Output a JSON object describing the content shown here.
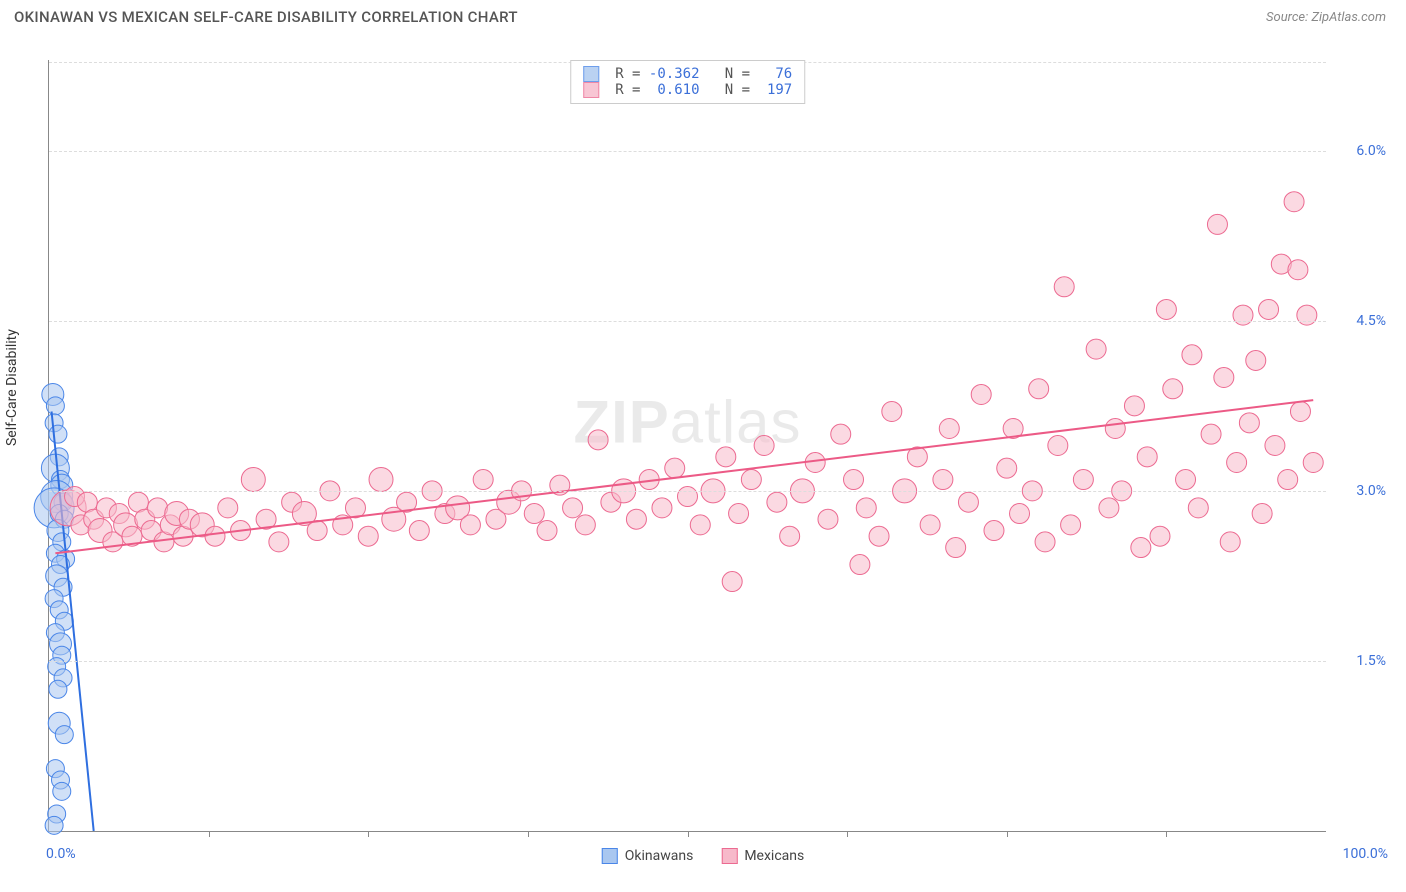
{
  "title": "OKINAWAN VS MEXICAN SELF-CARE DISABILITY CORRELATION CHART",
  "source_label": "Source: ",
  "source_name": "ZipAtlas.com",
  "watermark": "ZIPatlas",
  "ylabel": "Self-Care Disability",
  "xaxis": {
    "min_label": "0.0%",
    "max_label": "100.0%",
    "min": 0,
    "max": 100,
    "tick_positions": [
      12.5,
      25,
      37.5,
      50,
      62.5,
      75,
      87.5
    ]
  },
  "yaxis": {
    "min": 0,
    "max": 6.8,
    "ticks": [
      {
        "v": 1.5,
        "label": "1.5%"
      },
      {
        "v": 3.0,
        "label": "3.0%"
      },
      {
        "v": 4.5,
        "label": "4.5%"
      },
      {
        "v": 6.0,
        "label": "6.0%"
      }
    ],
    "label_fontsize": 14,
    "label_color": "#3b6fd8"
  },
  "series": [
    {
      "name": "Okinawans",
      "fill": "#a9c7f0",
      "stroke": "#4a86e8",
      "fill_opacity": 0.55,
      "marker_radius": 9,
      "trend": {
        "x1": 0.2,
        "y1": 3.7,
        "x2": 3.5,
        "y2": 0.0,
        "color": "#2f6fe0",
        "width": 2
      },
      "legend_stats": {
        "R": "-0.362",
        "N": "76"
      },
      "points": [
        [
          0.3,
          3.85,
          11
        ],
        [
          0.5,
          3.75,
          9
        ],
        [
          0.4,
          3.6,
          9
        ],
        [
          0.7,
          3.5,
          9
        ],
        [
          0.8,
          3.3,
          9
        ],
        [
          0.5,
          3.2,
          14
        ],
        [
          0.9,
          3.1,
          9
        ],
        [
          1.0,
          3.05,
          11
        ],
        [
          0.6,
          2.95,
          16
        ],
        [
          1.1,
          2.9,
          9
        ],
        [
          0.4,
          2.85,
          20
        ],
        [
          0.8,
          2.8,
          9
        ],
        [
          1.2,
          2.75,
          9
        ],
        [
          0.7,
          2.65,
          11
        ],
        [
          1.0,
          2.55,
          9
        ],
        [
          0.5,
          2.45,
          9
        ],
        [
          1.3,
          2.4,
          9
        ],
        [
          0.9,
          2.35,
          9
        ],
        [
          0.6,
          2.25,
          11
        ],
        [
          1.1,
          2.15,
          9
        ],
        [
          0.4,
          2.05,
          9
        ],
        [
          0.8,
          1.95,
          9
        ],
        [
          1.2,
          1.85,
          9
        ],
        [
          0.5,
          1.75,
          9
        ],
        [
          0.9,
          1.65,
          11
        ],
        [
          1.0,
          1.55,
          9
        ],
        [
          0.6,
          1.45,
          9
        ],
        [
          1.1,
          1.35,
          9
        ],
        [
          0.7,
          1.25,
          9
        ],
        [
          0.8,
          0.95,
          11
        ],
        [
          1.2,
          0.85,
          9
        ],
        [
          0.5,
          0.55,
          9
        ],
        [
          0.9,
          0.45,
          9
        ],
        [
          1.0,
          0.35,
          9
        ],
        [
          0.6,
          0.15,
          9
        ],
        [
          0.4,
          0.05,
          9
        ]
      ]
    },
    {
      "name": "Mexicans",
      "fill": "#f7b9ca",
      "stroke": "#ec6a91",
      "fill_opacity": 0.55,
      "marker_radius": 10,
      "trend": {
        "x1": 0.5,
        "y1": 2.45,
        "x2": 99,
        "y2": 3.8,
        "color": "#ec5a86",
        "width": 2
      },
      "legend_stats": {
        "R": "0.610",
        "N": "197"
      },
      "points": [
        [
          1.5,
          2.85,
          18
        ],
        [
          2,
          2.95,
          10
        ],
        [
          2.5,
          2.7,
          10
        ],
        [
          3,
          2.9,
          10
        ],
        [
          3.5,
          2.75,
          10
        ],
        [
          4,
          2.65,
          12
        ],
        [
          4.5,
          2.85,
          10
        ],
        [
          5,
          2.55,
          10
        ],
        [
          5.5,
          2.8,
          10
        ],
        [
          6,
          2.7,
          12
        ],
        [
          6.5,
          2.6,
          10
        ],
        [
          7,
          2.9,
          10
        ],
        [
          7.5,
          2.75,
          10
        ],
        [
          8,
          2.65,
          10
        ],
        [
          8.5,
          2.85,
          10
        ],
        [
          9,
          2.55,
          10
        ],
        [
          9.5,
          2.7,
          10
        ],
        [
          10,
          2.8,
          12
        ],
        [
          10.5,
          2.6,
          10
        ],
        [
          11,
          2.75,
          10
        ],
        [
          12,
          2.7,
          12
        ],
        [
          13,
          2.6,
          10
        ],
        [
          14,
          2.85,
          10
        ],
        [
          15,
          2.65,
          10
        ],
        [
          16,
          3.1,
          12
        ],
        [
          17,
          2.75,
          10
        ],
        [
          18,
          2.55,
          10
        ],
        [
          19,
          2.9,
          10
        ],
        [
          20,
          2.8,
          12
        ],
        [
          21,
          2.65,
          10
        ],
        [
          22,
          3.0,
          10
        ],
        [
          23,
          2.7,
          10
        ],
        [
          24,
          2.85,
          10
        ],
        [
          25,
          2.6,
          10
        ],
        [
          26,
          3.1,
          12
        ],
        [
          27,
          2.75,
          12
        ],
        [
          28,
          2.9,
          10
        ],
        [
          29,
          2.65,
          10
        ],
        [
          30,
          3.0,
          10
        ],
        [
          31,
          2.8,
          10
        ],
        [
          32,
          2.85,
          12
        ],
        [
          33,
          2.7,
          10
        ],
        [
          34,
          3.1,
          10
        ],
        [
          35,
          2.75,
          10
        ],
        [
          36,
          2.9,
          12
        ],
        [
          37,
          3.0,
          10
        ],
        [
          38,
          2.8,
          10
        ],
        [
          39,
          2.65,
          10
        ],
        [
          40,
          3.05,
          10
        ],
        [
          41,
          2.85,
          10
        ],
        [
          42,
          2.7,
          10
        ],
        [
          43,
          3.45,
          10
        ],
        [
          44,
          2.9,
          10
        ],
        [
          45,
          3.0,
          12
        ],
        [
          46,
          2.75,
          10
        ],
        [
          47,
          3.1,
          10
        ],
        [
          48,
          2.85,
          10
        ],
        [
          49,
          3.2,
          10
        ],
        [
          50,
          2.95,
          10
        ],
        [
          51,
          2.7,
          10
        ],
        [
          52,
          3.0,
          12
        ],
        [
          53,
          3.3,
          10
        ],
        [
          53.5,
          2.2,
          10
        ],
        [
          54,
          2.8,
          10
        ],
        [
          55,
          3.1,
          10
        ],
        [
          56,
          3.4,
          10
        ],
        [
          57,
          2.9,
          10
        ],
        [
          58,
          2.6,
          10
        ],
        [
          59,
          3.0,
          12
        ],
        [
          60,
          3.25,
          10
        ],
        [
          61,
          2.75,
          10
        ],
        [
          62,
          3.5,
          10
        ],
        [
          63,
          3.1,
          10
        ],
        [
          63.5,
          2.35,
          10
        ],
        [
          64,
          2.85,
          10
        ],
        [
          65,
          2.6,
          10
        ],
        [
          66,
          3.7,
          10
        ],
        [
          67,
          3.0,
          12
        ],
        [
          68,
          3.3,
          10
        ],
        [
          69,
          2.7,
          10
        ],
        [
          70,
          3.1,
          10
        ],
        [
          70.5,
          3.55,
          10
        ],
        [
          71,
          2.5,
          10
        ],
        [
          72,
          2.9,
          10
        ],
        [
          73,
          3.85,
          10
        ],
        [
          74,
          2.65,
          10
        ],
        [
          75,
          3.2,
          10
        ],
        [
          75.5,
          3.55,
          10
        ],
        [
          76,
          2.8,
          10
        ],
        [
          77,
          3.0,
          10
        ],
        [
          77.5,
          3.9,
          10
        ],
        [
          78,
          2.55,
          10
        ],
        [
          79,
          3.4,
          10
        ],
        [
          79.5,
          4.8,
          10
        ],
        [
          80,
          2.7,
          10
        ],
        [
          81,
          3.1,
          10
        ],
        [
          82,
          4.25,
          10
        ],
        [
          83,
          2.85,
          10
        ],
        [
          83.5,
          3.55,
          10
        ],
        [
          84,
          3.0,
          10
        ],
        [
          85,
          3.75,
          10
        ],
        [
          85.5,
          2.5,
          10
        ],
        [
          86,
          3.3,
          10
        ],
        [
          87,
          2.6,
          10
        ],
        [
          87.5,
          4.6,
          10
        ],
        [
          88,
          3.9,
          10
        ],
        [
          89,
          3.1,
          10
        ],
        [
          89.5,
          4.2,
          10
        ],
        [
          90,
          2.85,
          10
        ],
        [
          91,
          3.5,
          10
        ],
        [
          91.5,
          5.35,
          10
        ],
        [
          92,
          4.0,
          10
        ],
        [
          92.5,
          2.55,
          10
        ],
        [
          93,
          3.25,
          10
        ],
        [
          93.5,
          4.55,
          10
        ],
        [
          94,
          3.6,
          10
        ],
        [
          94.5,
          4.15,
          10
        ],
        [
          95,
          2.8,
          10
        ],
        [
          95.5,
          4.6,
          10
        ],
        [
          96,
          3.4,
          10
        ],
        [
          96.5,
          5.0,
          10
        ],
        [
          97,
          3.1,
          10
        ],
        [
          97.5,
          5.55,
          10
        ],
        [
          97.8,
          4.95,
          10
        ],
        [
          98,
          3.7,
          10
        ],
        [
          98.5,
          4.55,
          10
        ],
        [
          99,
          3.25,
          10
        ]
      ]
    }
  ],
  "legend_top_format": {
    "R_label": "R =",
    "N_label": "N ="
  },
  "colors": {
    "title": "#555555",
    "source": "#888888",
    "axis": "#888888",
    "grid": "#dddddd",
    "value": "#3b6fd8"
  }
}
